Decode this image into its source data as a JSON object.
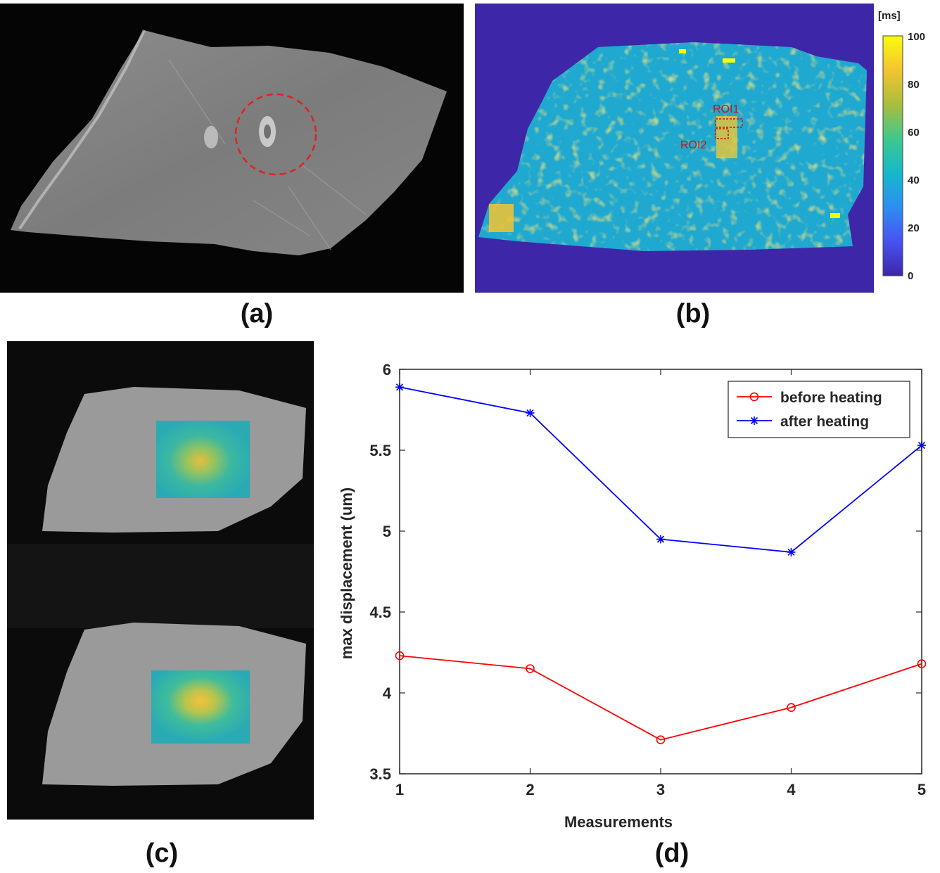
{
  "figure": {
    "labels": {
      "a": "(a)",
      "b": "(b)",
      "c": "(c)",
      "d": "(d)"
    }
  },
  "panel_b": {
    "colorbar_unit": "[ms]",
    "colorbar_ticks": [
      "100",
      "80",
      "60",
      "40",
      "20",
      "0"
    ],
    "roi_labels": [
      "ROI1",
      "ROI2"
    ],
    "colormap": [
      "#3e26a8",
      "#4852f1",
      "#2d8ef1",
      "#16b8cb",
      "#3fc78d",
      "#a8be3e",
      "#f3c431",
      "#f9fb0e"
    ]
  },
  "chart_data": {
    "type": "line",
    "xlabel": "Measurements",
    "ylabel": "max displacement (um)",
    "x": [
      1,
      2,
      3,
      4,
      5
    ],
    "xlim": [
      1,
      5
    ],
    "ylim": [
      3.5,
      6
    ],
    "xticks": [
      "1",
      "2",
      "3",
      "4",
      "5"
    ],
    "yticks": [
      "3.5",
      "4",
      "4.5",
      "5",
      "5.5",
      "6"
    ],
    "grid": false,
    "legend_position": "top-right",
    "series": [
      {
        "name": "before heating",
        "color": "#ff0000",
        "marker": "circle",
        "values": [
          4.23,
          4.15,
          3.71,
          3.91,
          4.18
        ]
      },
      {
        "name": "after heating",
        "color": "#0000ff",
        "marker": "asterisk",
        "values": [
          5.89,
          5.73,
          4.95,
          4.87,
          5.53
        ]
      }
    ]
  }
}
